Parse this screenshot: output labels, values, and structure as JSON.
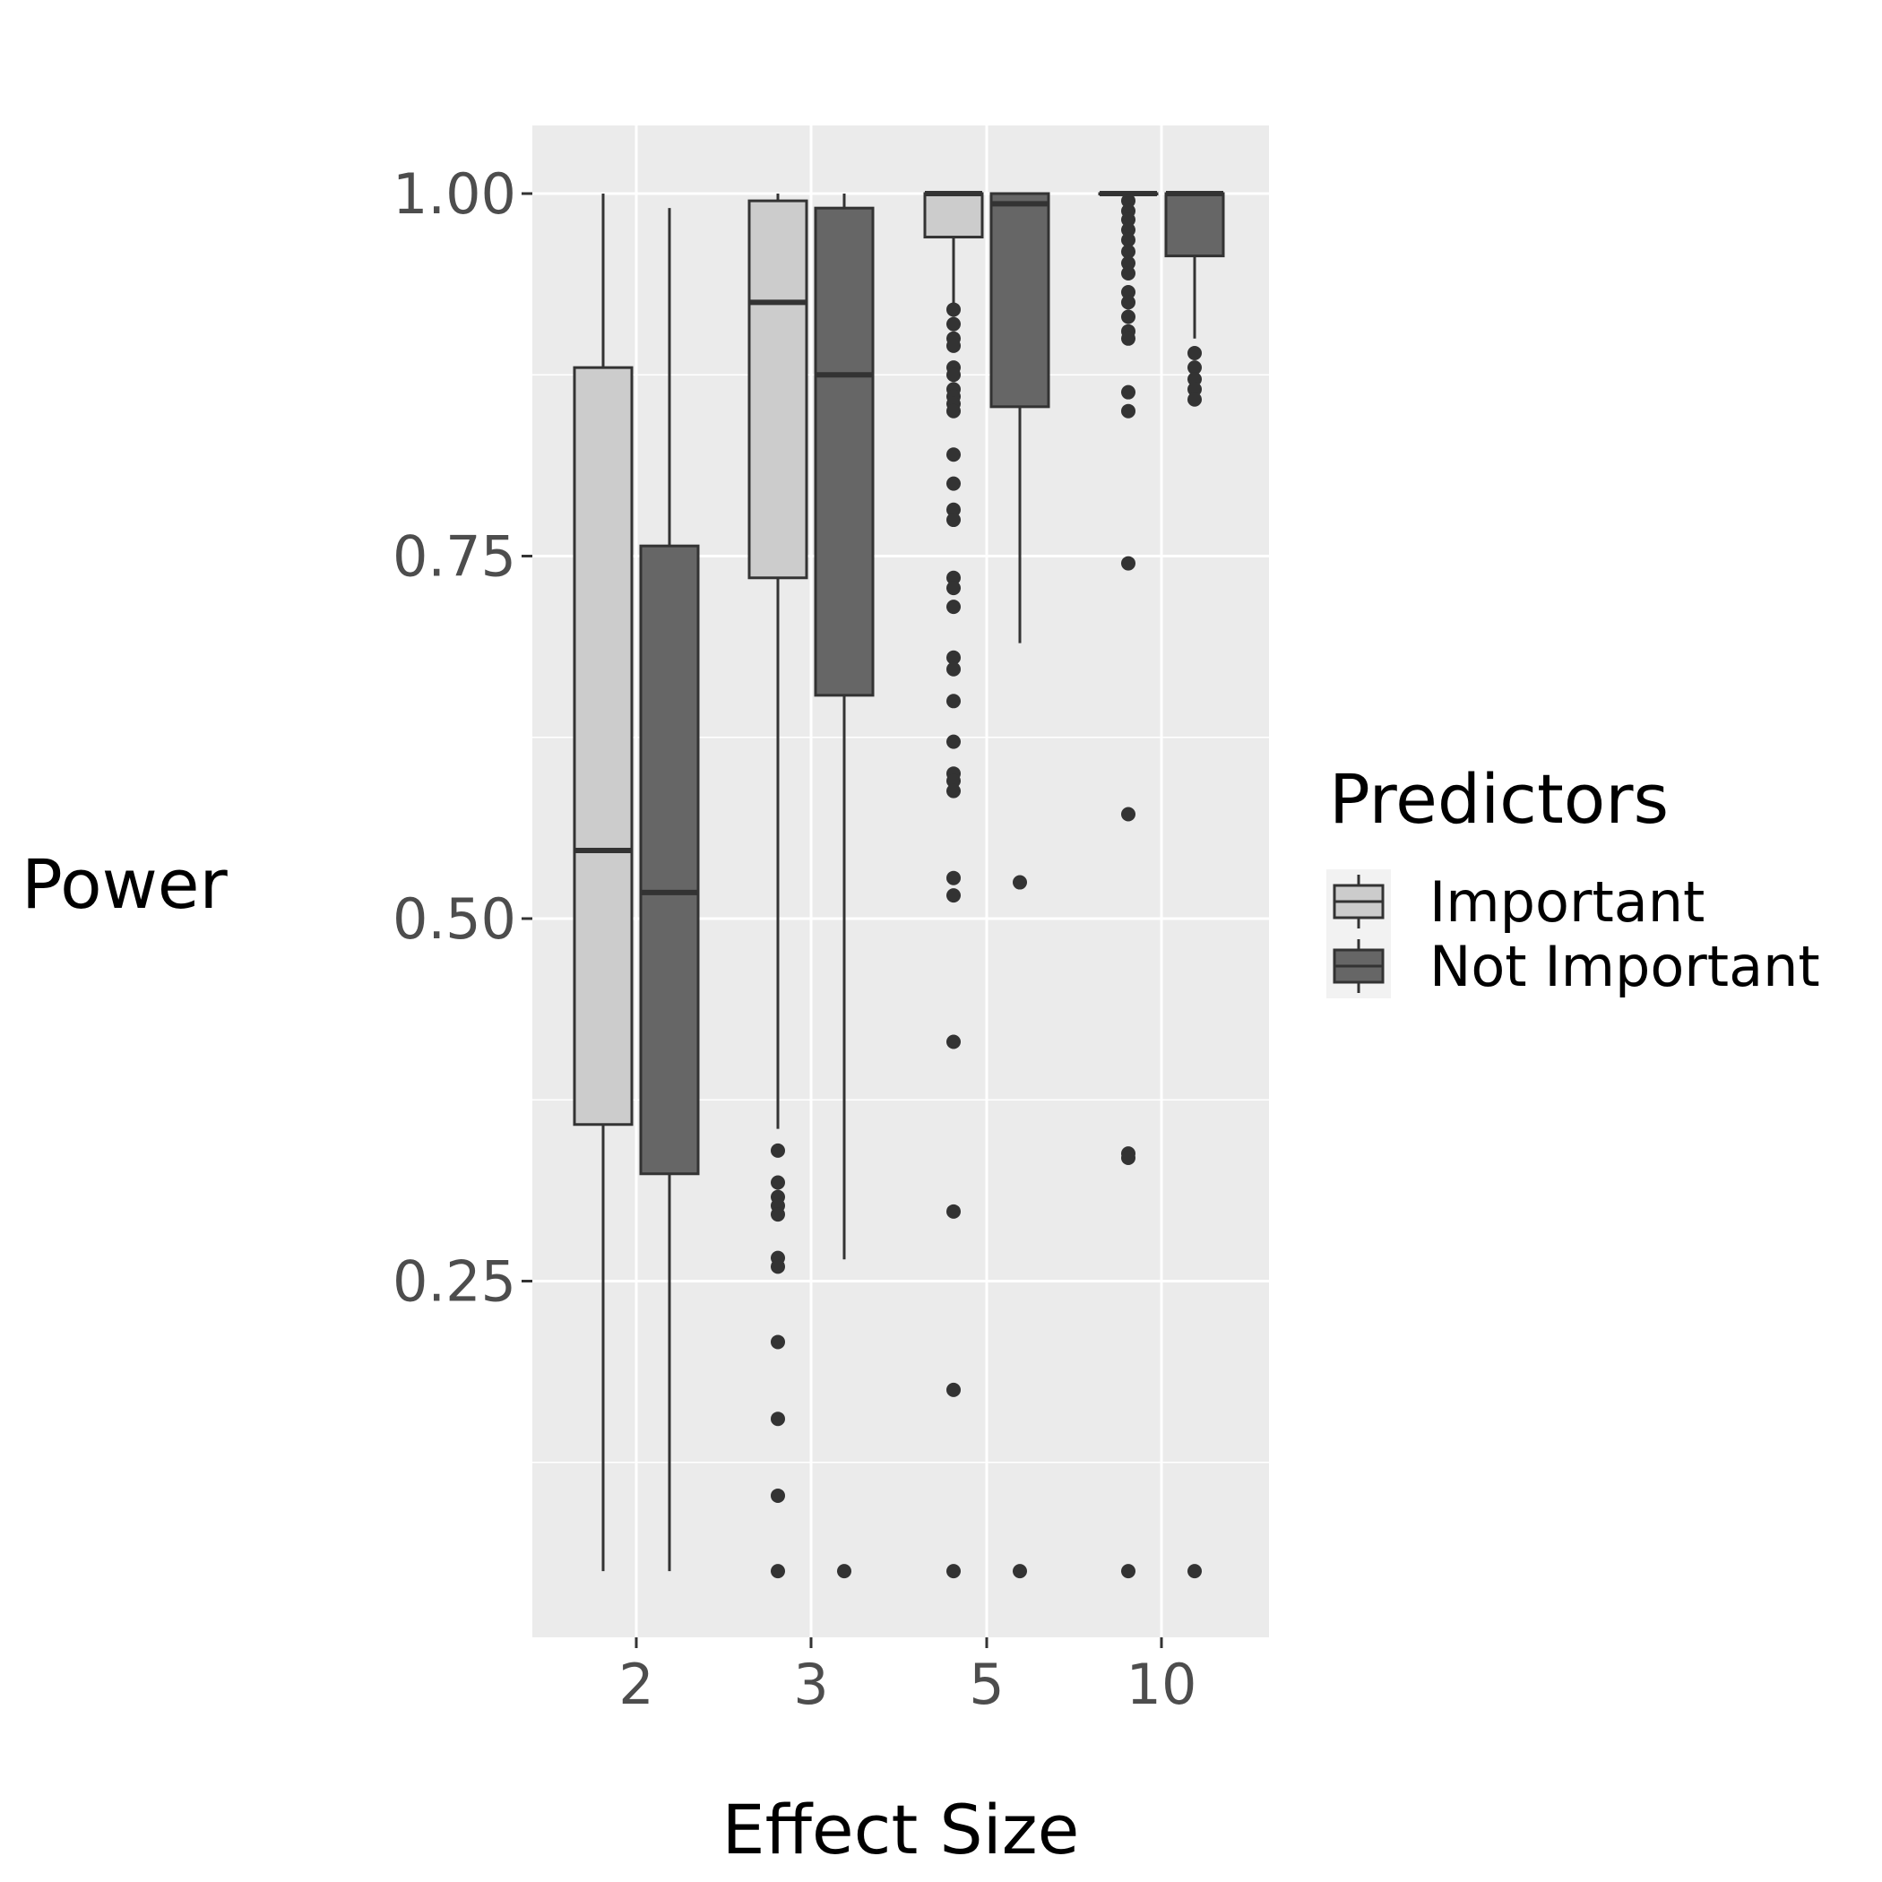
{
  "chart_data": {
    "type": "boxplot",
    "xlabel": "Effect Size",
    "ylabel": "Power",
    "categories": [
      "2",
      "3",
      "5",
      "10"
    ],
    "ylim": [
      0.0,
      1.045
    ],
    "yticks": [
      {
        "value": 0.25,
        "label": "0.25"
      },
      {
        "value": 0.5,
        "label": "0.50"
      },
      {
        "value": 0.75,
        "label": "0.75"
      },
      {
        "value": 1.0,
        "label": "1.00"
      }
    ],
    "minor_gridlines": [
      0.125,
      0.375,
      0.625,
      0.875
    ],
    "grid": true,
    "legend": {
      "title": "Predictors",
      "position": "right",
      "entries": [
        {
          "name": "Important",
          "fill": "#cccccc"
        },
        {
          "name": "Not Important",
          "fill": "#666666"
        }
      ]
    },
    "colors": {
      "panel_background": "#ebebeb",
      "gridline": "#ffffff",
      "box_outline": "#333333",
      "outlier": "#333333",
      "tick_label": "#4d4d4d",
      "axis_title": "#000000"
    },
    "series": [
      {
        "name": "Important",
        "fill": "#cccccc",
        "boxes": [
          {
            "category": "2",
            "whisker_low": 0.05,
            "q1": 0.358,
            "median": 0.547,
            "q3": 0.88,
            "whisker_high": 1.0,
            "outliers": []
          },
          {
            "category": "3",
            "whisker_low": 0.355,
            "q1": 0.735,
            "median": 0.925,
            "q3": 0.995,
            "whisker_high": 1.0,
            "outliers": [
              0.34,
              0.318,
              0.308,
              0.302,
              0.296,
              0.266,
              0.26,
              0.208,
              0.155,
              0.102,
              0.05
            ]
          },
          {
            "category": "5",
            "whisker_low": 0.92,
            "q1": 0.97,
            "median": 1.0,
            "q3": 1.0,
            "whisker_high": 1.0,
            "outliers": [
              0.92,
              0.91,
              0.9,
              0.895,
              0.88,
              0.875,
              0.865,
              0.86,
              0.855,
              0.85,
              0.82,
              0.8,
              0.782,
              0.775,
              0.735,
              0.728,
              0.715,
              0.68,
              0.672,
              0.65,
              0.622,
              0.6,
              0.595,
              0.588,
              0.528,
              0.516,
              0.415,
              0.298,
              0.175,
              0.05
            ]
          },
          {
            "category": "10",
            "whisker_low": 1.0,
            "q1": 1.0,
            "median": 1.0,
            "q3": 1.0,
            "whisker_high": 1.0,
            "outliers": [
              0.995,
              0.988,
              0.982,
              0.975,
              0.968,
              0.96,
              0.952,
              0.945,
              0.932,
              0.925,
              0.915,
              0.905,
              0.9,
              0.863,
              0.85,
              0.745,
              0.572,
              0.338,
              0.335,
              0.05
            ]
          }
        ]
      },
      {
        "name": "Not Important",
        "fill": "#666666",
        "boxes": [
          {
            "category": "2",
            "whisker_low": 0.05,
            "q1": 0.324,
            "median": 0.518,
            "q3": 0.757,
            "whisker_high": 0.99,
            "outliers": []
          },
          {
            "category": "3",
            "whisker_low": 0.265,
            "q1": 0.654,
            "median": 0.875,
            "q3": 0.99,
            "whisker_high": 1.0,
            "outliers": [
              0.05
            ]
          },
          {
            "category": "5",
            "whisker_low": 0.69,
            "q1": 0.853,
            "median": 0.993,
            "q3": 1.0,
            "whisker_high": 1.0,
            "outliers": [
              0.525,
              0.05
            ]
          },
          {
            "category": "10",
            "whisker_low": 0.9,
            "q1": 0.957,
            "median": 1.0,
            "q3": 1.0,
            "whisker_high": 1.0,
            "outliers": [
              0.89,
              0.88,
              0.872,
              0.865,
              0.858,
              0.05
            ]
          }
        ]
      }
    ]
  }
}
